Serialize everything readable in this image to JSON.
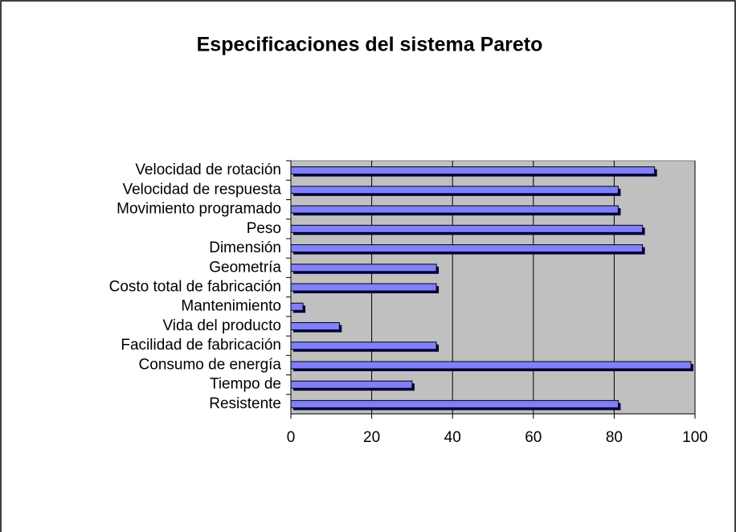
{
  "chart_data": {
    "type": "bar",
    "orientation": "horizontal",
    "title": "Especificaciones del sistema Pareto",
    "categories": [
      "Velocidad de rotación",
      "Velocidad de respuesta",
      "Movimiento programado",
      "Peso",
      "Dimensión",
      "Geometría",
      "Costo total de fabricación",
      "Mantenimiento",
      "Vida del producto",
      "Facilidad de fabricación",
      "Consumo de energía",
      "Tiempo de",
      "Resistente"
    ],
    "values": [
      90,
      81,
      81,
      87,
      87,
      36,
      36,
      3,
      12,
      36,
      99,
      30,
      81
    ],
    "color": "#8080ff",
    "xlim": [
      0,
      100
    ],
    "xticks": [
      0,
      20,
      40,
      60,
      80,
      100
    ],
    "grid": true
  }
}
